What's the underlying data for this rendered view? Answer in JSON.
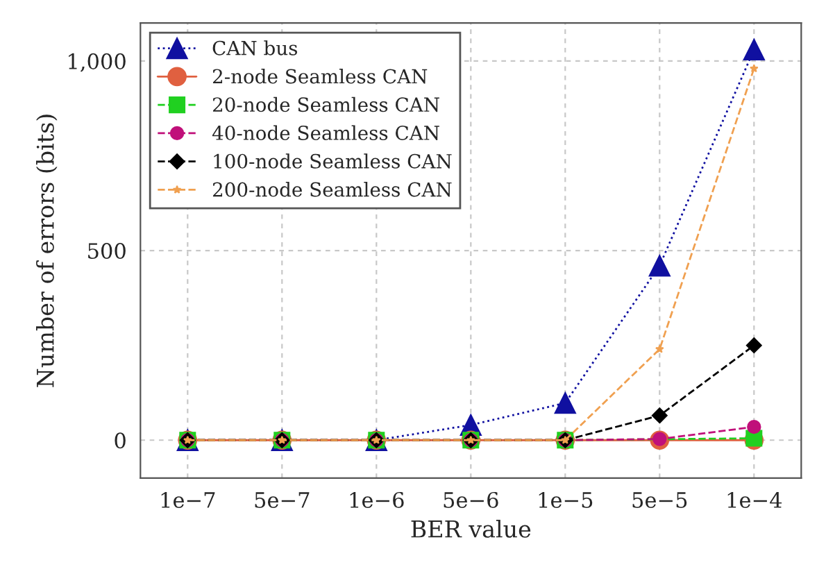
{
  "chart_data": {
    "type": "line",
    "xlabel": "BER value",
    "ylabel": "Number of errors (bits)",
    "categories": [
      "1e−7",
      "5e−7",
      "1e−6",
      "5e−6",
      "1e−5",
      "5e−5",
      "1e−4"
    ],
    "series": [
      {
        "name": "CAN bus",
        "color": "#1010a0",
        "marker": "triangle",
        "line_style": "dotted",
        "values": [
          0,
          0,
          0,
          40,
          98,
          460,
          1030
        ]
      },
      {
        "name": "2-node Seamless CAN",
        "color": "#e06040",
        "marker": "circle",
        "line_style": "solid",
        "values": [
          0,
          0,
          0,
          0,
          0,
          0,
          0
        ]
      },
      {
        "name": "20-node Seamless CAN",
        "color": "#20d020",
        "marker": "square",
        "line_style": "dashed",
        "values": [
          0,
          0,
          0,
          0,
          0,
          null,
          5
        ]
      },
      {
        "name": "40-node Seamless CAN",
        "color": "#c0107a",
        "marker": "circle",
        "line_style": "dashed",
        "values": [
          0,
          0,
          0,
          0,
          0,
          3,
          35
        ]
      },
      {
        "name": "100-node Seamless CAN",
        "color": "#000000",
        "marker": "diamond",
        "line_style": "dashed",
        "values": [
          0,
          0,
          0,
          0,
          0,
          65,
          250
        ]
      },
      {
        "name": "200-node Seamless CAN",
        "color": "#f0a050",
        "marker": "star",
        "line_style": "dashed",
        "values": [
          0,
          0,
          0,
          0,
          0,
          240,
          980
        ]
      }
    ],
    "ylim": [
      -100,
      1100
    ],
    "yticks": [
      0,
      500,
      {
        "value": 1000,
        "label": "1,000"
      }
    ],
    "grid": true,
    "legend": "top left"
  }
}
